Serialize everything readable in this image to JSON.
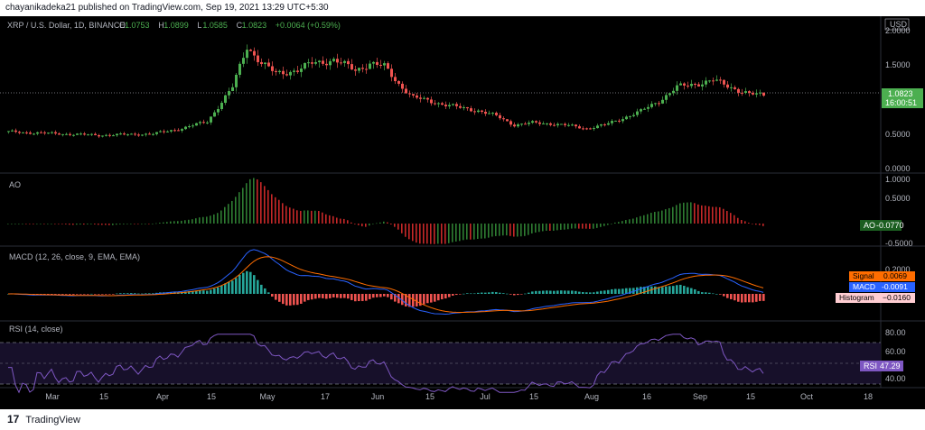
{
  "publish_line": "chayanikadeka21 published on TradingView.com, Sep 19, 2021 13:29 UTC+5:30",
  "footer_brand": "TradingView",
  "main": {
    "symbol_line": "XRP / U.S. Dollar, 1D, BINANCE",
    "ohlc": [
      {
        "k": "O",
        "v": "1.0753"
      },
      {
        "k": "H",
        "v": "1.0899"
      },
      {
        "k": "L",
        "v": "1.0585"
      },
      {
        "k": "C",
        "v": "1.0823"
      },
      {
        "k": "",
        "v": "+0.0064 (+0.59%)"
      }
    ],
    "currency": "USD",
    "price_ticks": [
      "2.0000",
      "1.5000",
      "1.0000",
      "0.5000",
      "0.0000"
    ],
    "last_price": "1.0823",
    "countdown": "16:00:51"
  },
  "ao": {
    "title": "AO",
    "ticks": [
      "1.0000",
      "0.5000",
      "-0.5000"
    ],
    "label": "AO",
    "value": "-0.0770"
  },
  "macd": {
    "title": "MACD (12, 26, close, 9, EMA, EMA)",
    "ticks": [
      "0.2000"
    ],
    "signal_label": "Signal",
    "signal_value": "0.0069",
    "macd_label": "MACD",
    "macd_value": "-0.0091",
    "hist_label": "Histogram",
    "hist_value": "−0.0160"
  },
  "rsi": {
    "title": "RSI (14, close)",
    "ticks": [
      "80.00",
      "60.00",
      "40.00"
    ],
    "label": "RSI",
    "value": "47.29"
  },
  "time_axis": [
    "Mar",
    "15",
    "Apr",
    "15",
    "May",
    "17",
    "Jun",
    "15",
    "Jul",
    "15",
    "Aug",
    "16",
    "Sep",
    "15",
    "Oct",
    "18"
  ],
  "colors": {
    "bull": "#26a69a",
    "bull_price": "#4caf50",
    "bear": "#ef5350",
    "ao_green": "#2e7d32",
    "ao_red": "#c62828",
    "macd_line": "#2962ff",
    "signal_line": "#ff6d00",
    "rsi_line": "#7e57c2",
    "last_price_bg": "#4caf50"
  }
}
